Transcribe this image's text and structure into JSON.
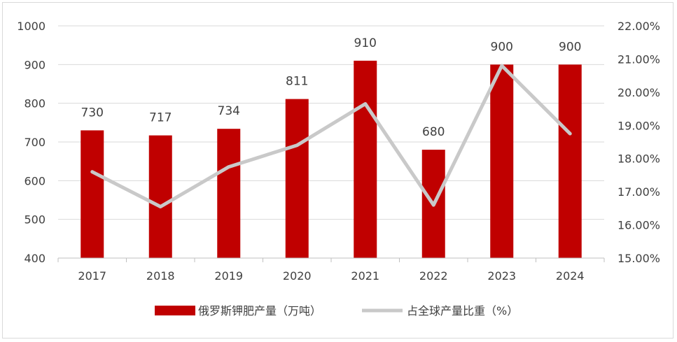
{
  "chart_data": {
    "type": "bar",
    "categories": [
      "2017",
      "2018",
      "2019",
      "2020",
      "2021",
      "2022",
      "2023",
      "2024"
    ],
    "series": [
      {
        "name": "俄罗斯钾肥产量（万吨）",
        "type": "bar",
        "axis": "left",
        "values": [
          730,
          717,
          734,
          811,
          910,
          680,
          900,
          900
        ],
        "data_labels": [
          "730",
          "717",
          "734",
          "811",
          "910",
          "680",
          "900",
          "900"
        ]
      },
      {
        "name": "占全球产量比重（%）",
        "type": "line",
        "axis": "right",
        "values": [
          17.6,
          16.55,
          17.75,
          18.4,
          19.65,
          16.6,
          20.8,
          18.75
        ]
      }
    ],
    "y_left": {
      "min": 400,
      "max": 1000,
      "ticks": [
        "400",
        "500",
        "600",
        "700",
        "800",
        "900",
        "1000"
      ]
    },
    "y_right": {
      "min": 15,
      "max": 22,
      "ticks": [
        "15.00%",
        "16.00%",
        "17.00%",
        "18.00%",
        "19.00%",
        "20.00%",
        "21.00%",
        "22.00%"
      ]
    },
    "grid": true,
    "legend_position": "bottom",
    "colors": {
      "bar": "#C00000",
      "line": "#C9C9C9",
      "grid": "#D9D9D9",
      "axis": "#BFBFBF",
      "text": "#404040"
    }
  }
}
